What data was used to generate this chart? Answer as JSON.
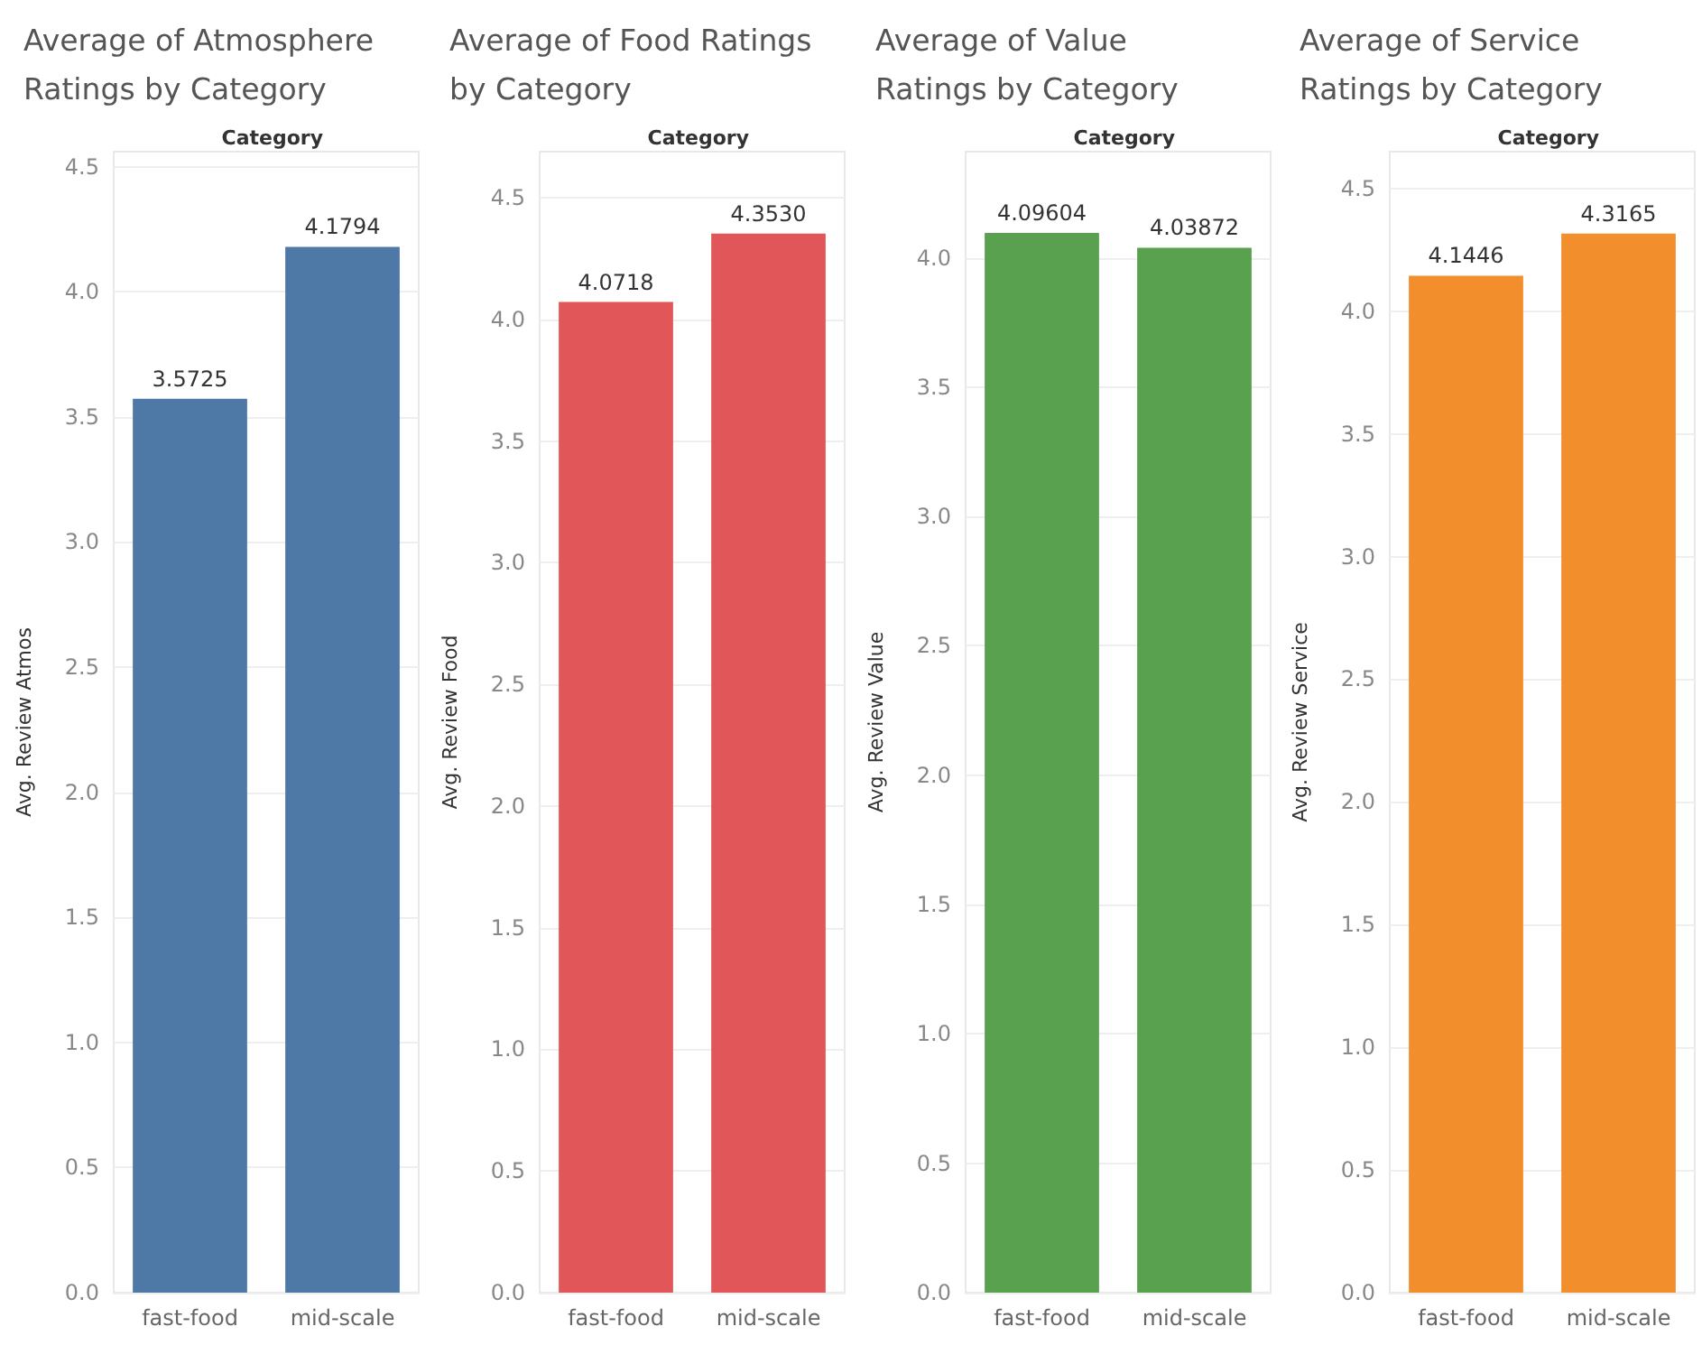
{
  "chart_data": [
    {
      "type": "bar",
      "title": "Average of Atmosphere\nRatings by Category",
      "xlabel": "Category",
      "ylabel": "Avg. Review Atmos",
      "categories": [
        "fast-food",
        "mid-scale"
      ],
      "values": [
        3.5725,
        4.1794
      ],
      "value_labels": [
        "3.5725",
        "4.1794"
      ],
      "color": "#4e79a7",
      "ylim": [
        0,
        4.56
      ],
      "yticks": [
        {
          "value": 0,
          "label": "0.0"
        },
        {
          "value": 0.5,
          "label": "0.5"
        },
        {
          "value": 1,
          "label": "1.0"
        },
        {
          "value": 1.5,
          "label": "1.5"
        },
        {
          "value": 2,
          "label": "2.0"
        },
        {
          "value": 2.5,
          "label": "2.5"
        },
        {
          "value": 3,
          "label": "3.0"
        },
        {
          "value": 3.5,
          "label": "3.5"
        },
        {
          "value": 4,
          "label": "4.0"
        },
        {
          "value": 4.5,
          "label": "4.5"
        }
      ],
      "grid": "y"
    },
    {
      "type": "bar",
      "title": "Average of Food Ratings\nby Category",
      "xlabel": "Category",
      "ylabel": "Avg. Review Food",
      "categories": [
        "fast-food",
        "mid-scale"
      ],
      "values": [
        4.0718,
        4.353
      ],
      "value_labels": [
        "4.0718",
        "4.3530"
      ],
      "color": "#e15759",
      "ylim": [
        0,
        4.69
      ],
      "yticks": [
        {
          "value": 0,
          "label": "0.0"
        },
        {
          "value": 0.5,
          "label": "0.5"
        },
        {
          "value": 1,
          "label": "1.0"
        },
        {
          "value": 1.5,
          "label": "1.5"
        },
        {
          "value": 2,
          "label": "2.0"
        },
        {
          "value": 2.5,
          "label": "2.5"
        },
        {
          "value": 3,
          "label": "3.0"
        },
        {
          "value": 3.5,
          "label": "3.5"
        },
        {
          "value": 4,
          "label": "4.0"
        },
        {
          "value": 4.5,
          "label": "4.5"
        }
      ],
      "grid": "y"
    },
    {
      "type": "bar",
      "title": "Average of Value\nRatings by Category",
      "xlabel": "Category",
      "ylabel": "Avg. Review Value",
      "categories": [
        "fast-food",
        "mid-scale"
      ],
      "values": [
        4.09604,
        4.03872
      ],
      "value_labels": [
        "4.09604",
        "4.03872"
      ],
      "color": "#59a14f",
      "ylim": [
        0,
        4.41
      ],
      "yticks": [
        {
          "value": 0,
          "label": "0.0"
        },
        {
          "value": 0.5,
          "label": "0.5"
        },
        {
          "value": 1,
          "label": "1.0"
        },
        {
          "value": 1.5,
          "label": "1.5"
        },
        {
          "value": 2,
          "label": "2.0"
        },
        {
          "value": 2.5,
          "label": "2.5"
        },
        {
          "value": 3,
          "label": "3.0"
        },
        {
          "value": 3.5,
          "label": "3.5"
        },
        {
          "value": 4,
          "label": "4.0"
        }
      ],
      "grid": "y"
    },
    {
      "type": "bar",
      "title": "Average of Service\nRatings by Category",
      "xlabel": "Category",
      "ylabel": "Avg. Review Service",
      "categories": [
        "fast-food",
        "mid-scale"
      ],
      "values": [
        4.1446,
        4.3165
      ],
      "value_labels": [
        "4.1446",
        "4.3165"
      ],
      "color": "#f28e2b",
      "ylim": [
        0,
        4.65
      ],
      "yticks": [
        {
          "value": 0,
          "label": "0.0"
        },
        {
          "value": 0.5,
          "label": "0.5"
        },
        {
          "value": 1,
          "label": "1.0"
        },
        {
          "value": 1.5,
          "label": "1.5"
        },
        {
          "value": 2,
          "label": "2.0"
        },
        {
          "value": 2.5,
          "label": "2.5"
        },
        {
          "value": 3,
          "label": "3.0"
        },
        {
          "value": 3.5,
          "label": "3.5"
        },
        {
          "value": 4,
          "label": "4.0"
        },
        {
          "value": 4.5,
          "label": "4.5"
        }
      ],
      "grid": "y"
    }
  ]
}
